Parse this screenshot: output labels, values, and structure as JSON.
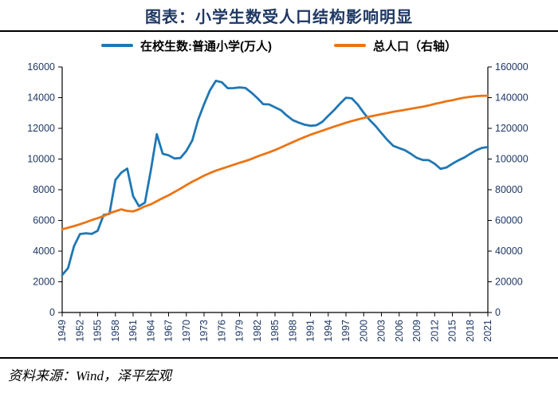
{
  "title": "图表：小学生数受人口结构影响明显",
  "source": "资料来源：Wind，泽平宏观",
  "colors": {
    "students_line": "#1f77b4",
    "population_line": "#ec7413",
    "axis_label": "#1f3864",
    "title_text": "#1f3864",
    "axis_line": "#000000"
  },
  "legend": [
    {
      "label": "在校生数:普通小学(万人)",
      "color": "#1f77b4"
    },
    {
      "label": "总人口（右轴）",
      "color": "#ec7413"
    }
  ],
  "chart_data": {
    "type": "line",
    "title": "图表：小学生数受人口结构影响明显",
    "xlabel": "",
    "ylabel": "",
    "grid": false,
    "legend_position": "top",
    "years": [
      1949,
      1950,
      1951,
      1952,
      1953,
      1954,
      1955,
      1956,
      1957,
      1958,
      1959,
      1960,
      1961,
      1962,
      1963,
      1964,
      1965,
      1966,
      1967,
      1968,
      1969,
      1970,
      1971,
      1972,
      1973,
      1974,
      1975,
      1976,
      1977,
      1978,
      1979,
      1980,
      1981,
      1982,
      1983,
      1984,
      1985,
      1986,
      1987,
      1988,
      1989,
      1990,
      1991,
      1992,
      1993,
      1994,
      1995,
      1996,
      1997,
      1998,
      1999,
      2000,
      2001,
      2002,
      2003,
      2004,
      2005,
      2006,
      2007,
      2008,
      2009,
      2010,
      2011,
      2012,
      2013,
      2014,
      2015,
      2016,
      2017,
      2018,
      2019,
      2020,
      2021
    ],
    "series": [
      {
        "name": "在校生数:普通小学(万人)",
        "axis": "left",
        "color": "#1f77b4",
        "values": [
          2439,
          2892,
          4315,
          5110,
          5166,
          5122,
          5326,
          6347,
          6428,
          8640,
          9118,
          9379,
          7579,
          6924,
          7157,
          9295,
          11621,
          10342,
          10244,
          10036,
          10067,
          10528,
          11211,
          12566,
          13570,
          14481,
          15094,
          15005,
          14618,
          14624,
          14663,
          14627,
          14333,
          13972,
          13578,
          13557,
          13370,
          13183,
          12836,
          12536,
          12373,
          12241,
          12164,
          12201,
          12421,
          12823,
          13195,
          13615,
          13995,
          13954,
          13548,
          13013,
          12543,
          12157,
          11690,
          11246,
          10864,
          10712,
          10564,
          10331,
          10071,
          9940,
          9926,
          9696,
          9361,
          9451,
          9692,
          9913,
          10094,
          10339,
          10561,
          10725,
          10780
        ]
      },
      {
        "name": "总人口（右轴）",
        "axis": "right",
        "color": "#ec7413",
        "values": [
          54167,
          55196,
          56300,
          57482,
          58796,
          60266,
          61465,
          62828,
          64653,
          65994,
          67207,
          66207,
          65859,
          67295,
          69172,
          70499,
          72538,
          74542,
          76368,
          78534,
          80671,
          82992,
          85229,
          87177,
          89211,
          90859,
          92420,
          93717,
          94974,
          96259,
          97542,
          98705,
          100072,
          101654,
          103008,
          104357,
          105851,
          107507,
          109300,
          111026,
          112704,
          114333,
          115823,
          117171,
          118517,
          119850,
          121121,
          122389,
          123626,
          124761,
          125786,
          126743,
          127627,
          128453,
          129227,
          129988,
          130756,
          131448,
          132129,
          132802,
          133450,
          134091,
          134916,
          135922,
          136726,
          137646,
          138326,
          139232,
          140011,
          140541,
          141008,
          141212,
          141260
        ]
      }
    ],
    "left_axis": {
      "min": 0,
      "max": 16000,
      "step": 2000,
      "ticks": [
        0,
        2000,
        4000,
        6000,
        8000,
        10000,
        12000,
        14000,
        16000
      ]
    },
    "right_axis": {
      "min": 0,
      "max": 160000,
      "step": 20000,
      "ticks": [
        0,
        20000,
        40000,
        60000,
        80000,
        100000,
        120000,
        140000,
        160000
      ]
    },
    "x_ticks": [
      1949,
      1952,
      1955,
      1958,
      1961,
      1964,
      1967,
      1970,
      1973,
      1976,
      1979,
      1982,
      1985,
      1988,
      1991,
      1994,
      1997,
      2000,
      2003,
      2006,
      2009,
      2012,
      2015,
      2018,
      2021
    ]
  }
}
